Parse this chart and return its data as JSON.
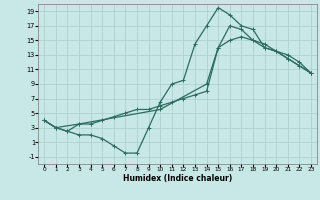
{
  "xlabel": "Humidex (Indice chaleur)",
  "bg_color": "#c8e8e8",
  "line_color": "#2d6b5e",
  "grid_color": "#a8cece",
  "xlim": [
    -0.5,
    23.5
  ],
  "ylim": [
    -2.0,
    20.0
  ],
  "xticks": [
    0,
    1,
    2,
    3,
    4,
    5,
    6,
    7,
    8,
    9,
    10,
    11,
    12,
    13,
    14,
    15,
    16,
    17,
    18,
    19,
    20,
    21,
    22,
    23
  ],
  "yticks": [
    -1,
    1,
    3,
    5,
    7,
    9,
    11,
    13,
    15,
    17,
    19
  ],
  "line1_x": [
    0,
    1,
    2,
    3,
    4,
    5,
    6,
    7,
    8,
    9,
    10,
    11,
    12,
    13,
    14,
    15,
    16,
    17,
    18,
    19,
    20,
    21,
    22,
    23
  ],
  "line1_y": [
    4,
    3,
    2.5,
    2,
    2,
    1.5,
    0.5,
    -0.5,
    -0.5,
    3,
    6.5,
    9,
    9.5,
    14.5,
    17,
    19.5,
    18.5,
    17,
    16.5,
    14,
    13.5,
    12.5,
    11.5,
    10.5
  ],
  "line2_x": [
    0,
    1,
    3,
    10,
    14,
    15,
    16,
    17,
    18,
    19,
    20,
    21,
    22,
    23
  ],
  "line2_y": [
    4,
    3,
    3.5,
    5.5,
    9,
    14,
    17,
    16.5,
    15,
    14.5,
    13.5,
    12.5,
    11.5,
    10.5
  ],
  "line3_x": [
    0,
    1,
    2,
    3,
    4,
    5,
    6,
    7,
    8,
    9,
    10,
    11,
    12,
    13,
    14,
    15,
    16,
    17,
    18,
    19,
    20,
    21,
    22,
    23
  ],
  "line3_y": [
    4,
    3,
    2.5,
    3.5,
    3.5,
    4,
    4.5,
    5,
    5.5,
    5.5,
    6,
    6.5,
    7,
    7.5,
    8,
    14,
    15,
    15.5,
    15,
    14,
    13.5,
    13,
    12,
    10.5
  ]
}
